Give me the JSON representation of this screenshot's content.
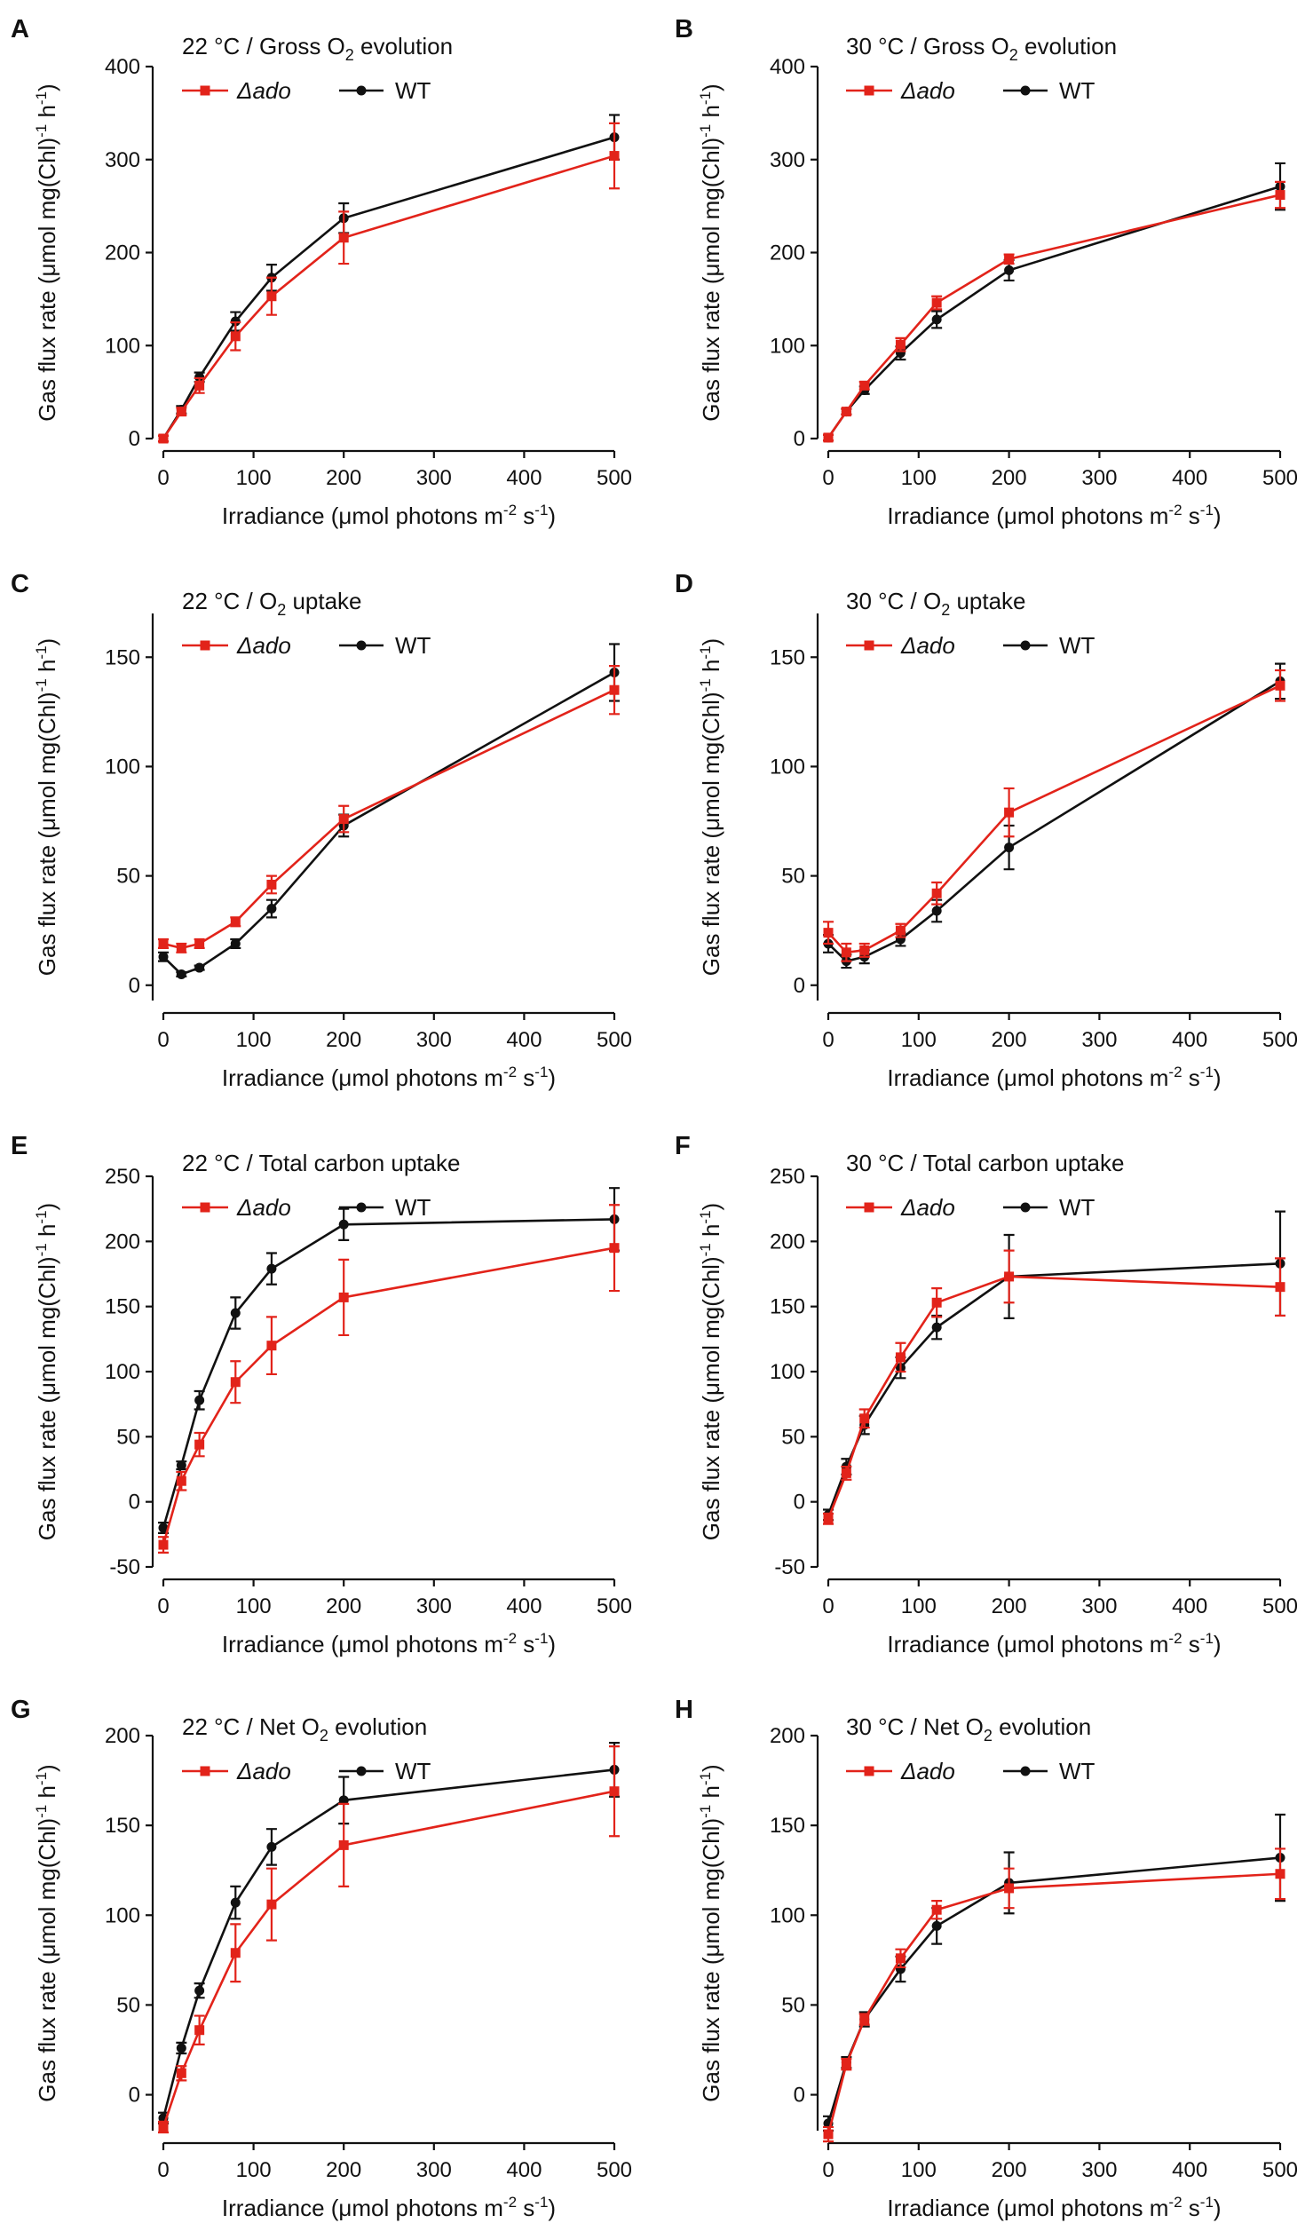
{
  "colors": {
    "ado": "#e2231a",
    "wt": "#111111"
  },
  "chart_data": [
    {
      "panel": "A",
      "type": "line",
      "title": "22 °C / Gross O2 evolution",
      "title_parts": [
        "22 °C / Gross O",
        "2",
        " evolution"
      ],
      "xlabel": "Irradiance (μmol photons m-2 s-1)",
      "xlabel_parts": [
        "Irradiance (μmol photons m",
        "-2",
        " s",
        "-1",
        ")"
      ],
      "ylabel": "Gas flux rate (μmol mg(Chl)-1 h-1)",
      "ylabel_parts": [
        "Gas flux rate (μmol mg(Chl)",
        "-1",
        " h",
        "-1",
        ")"
      ],
      "xlim": [
        0,
        500
      ],
      "ylim": [
        0,
        400
      ],
      "x_ticks": [
        0,
        100,
        200,
        300,
        400,
        500
      ],
      "y_ticks": [
        0,
        100,
        200,
        300,
        400
      ],
      "x": [
        0,
        20,
        40,
        80,
        120,
        200,
        500
      ],
      "series": [
        {
          "name": "Δado",
          "color": "#e2231a",
          "marker": "square",
          "values": [
            0,
            29,
            57,
            110,
            153,
            216,
            304
          ],
          "errors": [
            3,
            4,
            8,
            15,
            20,
            28,
            35
          ]
        },
        {
          "name": "WT",
          "color": "#111111",
          "marker": "circle",
          "values": [
            0,
            31,
            66,
            126,
            173,
            237,
            324
          ],
          "errors": [
            3,
            4,
            5,
            10,
            14,
            16,
            24
          ]
        }
      ]
    },
    {
      "panel": "B",
      "type": "line",
      "title": "30 °C / Gross O2 evolution",
      "title_parts": [
        "30 °C / Gross O",
        "2",
        " evolution"
      ],
      "xlabel": "Irradiance (μmol photons m-2 s-1)",
      "xlabel_parts": [
        "Irradiance (μmol photons m",
        "-2",
        " s",
        "-1",
        ")"
      ],
      "ylabel": "Gas flux rate (μmol mg(Chl)-1 h-1)",
      "ylabel_parts": [
        "Gas flux rate (μmol mg(Chl)",
        "-1",
        " h",
        "-1",
        ")"
      ],
      "xlim": [
        0,
        500
      ],
      "ylim": [
        0,
        400
      ],
      "x_ticks": [
        0,
        100,
        200,
        300,
        400,
        500
      ],
      "y_ticks": [
        0,
        100,
        200,
        300,
        400
      ],
      "x": [
        0,
        20,
        40,
        80,
        120,
        200,
        500
      ],
      "series": [
        {
          "name": "Δado",
          "color": "#e2231a",
          "marker": "square",
          "values": [
            1,
            29,
            57,
            101,
            146,
            193,
            262
          ],
          "errors": [
            3,
            3,
            4,
            7,
            7,
            5,
            14
          ]
        },
        {
          "name": "WT",
          "color": "#111111",
          "marker": "circle",
          "values": [
            1,
            29,
            52,
            92,
            128,
            181,
            271
          ],
          "errors": [
            3,
            3,
            4,
            7,
            9,
            11,
            25
          ]
        }
      ]
    },
    {
      "panel": "C",
      "type": "line",
      "title": "22 °C / O2 uptake",
      "title_parts": [
        "22 °C / O",
        "2",
        " uptake"
      ],
      "xlabel": "Irradiance (μmol photons m-2 s-1)",
      "xlabel_parts": [
        "Irradiance (μmol photons m",
        "-2",
        " s",
        "-1",
        ")"
      ],
      "ylabel": "Gas flux rate (μmol mg(Chl)-1 h-1)",
      "ylabel_parts": [
        "Gas flux rate (μmol mg(Chl)",
        "-1",
        " h",
        "-1",
        ")"
      ],
      "xlim": [
        0,
        500
      ],
      "ylim": [
        -7,
        170
      ],
      "x_ticks": [
        0,
        100,
        200,
        300,
        400,
        500
      ],
      "y_ticks": [
        0,
        50,
        100,
        150
      ],
      "x": [
        0,
        20,
        40,
        80,
        120,
        200,
        500
      ],
      "series": [
        {
          "name": "Δado",
          "color": "#e2231a",
          "marker": "square",
          "values": [
            19,
            17,
            19,
            29,
            46,
            76,
            135
          ],
          "errors": [
            2,
            2,
            2,
            2,
            4,
            6,
            11
          ]
        },
        {
          "name": "WT",
          "color": "#111111",
          "marker": "circle",
          "values": [
            13,
            5,
            8,
            19,
            35,
            73,
            143
          ],
          "errors": [
            2,
            1,
            1,
            2,
            4,
            5,
            13
          ]
        }
      ]
    },
    {
      "panel": "D",
      "type": "line",
      "title": "30 °C / O2 uptake",
      "title_parts": [
        "30 °C / O",
        "2",
        " uptake"
      ],
      "xlabel": "Irradiance (μmol photons m-2 s-1)",
      "xlabel_parts": [
        "Irradiance (μmol photons m",
        "-2",
        " s",
        "-1",
        ")"
      ],
      "ylabel": "Gas flux rate (μmol mg(Chl)-1 h-1)",
      "ylabel_parts": [
        "Gas flux rate (μmol mg(Chl)",
        "-1",
        " h",
        "-1",
        ")"
      ],
      "xlim": [
        0,
        500
      ],
      "ylim": [
        -7,
        170
      ],
      "x_ticks": [
        0,
        100,
        200,
        300,
        400,
        500
      ],
      "y_ticks": [
        0,
        50,
        100,
        150
      ],
      "x": [
        0,
        20,
        40,
        80,
        120,
        200,
        500
      ],
      "series": [
        {
          "name": "Δado",
          "color": "#e2231a",
          "marker": "square",
          "values": [
            24,
            15,
            16,
            25,
            42,
            79,
            137
          ],
          "errors": [
            5,
            4,
            3,
            3,
            5,
            11,
            7
          ]
        },
        {
          "name": "WT",
          "color": "#111111",
          "marker": "circle",
          "values": [
            19,
            11,
            13,
            21,
            34,
            63,
            139
          ],
          "errors": [
            4,
            3,
            3,
            3,
            5,
            10,
            8
          ]
        }
      ]
    },
    {
      "panel": "E",
      "type": "line",
      "title": "22 °C / Total carbon uptake",
      "title_parts": [
        "22 °C / Total carbon uptake"
      ],
      "xlabel": "Irradiance (μmol photons m-2 s-1)",
      "xlabel_parts": [
        "Irradiance (μmol photons m",
        "-2",
        " s",
        "-1",
        ")"
      ],
      "ylabel": "Gas flux rate (μmol mg(Chl)-1 h-1)",
      "ylabel_parts": [
        "Gas flux rate (μmol mg(Chl)",
        "-1",
        " h",
        "-1",
        ")"
      ],
      "xlim": [
        0,
        500
      ],
      "ylim": [
        -50,
        250
      ],
      "x_ticks": [
        0,
        100,
        200,
        300,
        400,
        500
      ],
      "y_ticks": [
        -50,
        0,
        50,
        100,
        150,
        200,
        250
      ],
      "x": [
        0,
        20,
        40,
        80,
        120,
        200,
        500
      ],
      "series": [
        {
          "name": "Δado",
          "color": "#e2231a",
          "marker": "square",
          "values": [
            -33,
            16,
            44,
            92,
            120,
            157,
            195
          ],
          "errors": [
            6,
            7,
            9,
            16,
            22,
            29,
            33
          ]
        },
        {
          "name": "WT",
          "color": "#111111",
          "marker": "circle",
          "values": [
            -20,
            28,
            78,
            145,
            179,
            213,
            217
          ],
          "errors": [
            4,
            3,
            7,
            12,
            12,
            12,
            24
          ]
        }
      ]
    },
    {
      "panel": "F",
      "type": "line",
      "title": "30 °C / Total carbon uptake",
      "title_parts": [
        "30 °C / Total carbon uptake"
      ],
      "xlabel": "Irradiance (μmol photons m-2 s-1)",
      "xlabel_parts": [
        "Irradiance (μmol photons m",
        "-2",
        " s",
        "-1",
        ")"
      ],
      "ylabel": "Gas flux rate (μmol mg(Chl)-1 h-1)",
      "ylabel_parts": [
        "Gas flux rate (μmol mg(Chl)",
        "-1",
        " h",
        "-1",
        ")"
      ],
      "xlim": [
        0,
        500
      ],
      "ylim": [
        -50,
        250
      ],
      "x_ticks": [
        0,
        100,
        200,
        300,
        400,
        500
      ],
      "y_ticks": [
        -50,
        0,
        50,
        100,
        150,
        200,
        250
      ],
      "x": [
        0,
        20,
        40,
        80,
        120,
        200,
        500
      ],
      "series": [
        {
          "name": "Δado",
          "color": "#e2231a",
          "marker": "square",
          "values": [
            -13,
            22,
            64,
            111,
            153,
            173,
            165
          ],
          "errors": [
            4,
            5,
            7,
            11,
            11,
            20,
            22
          ]
        },
        {
          "name": "WT",
          "color": "#111111",
          "marker": "circle",
          "values": [
            -10,
            27,
            59,
            103,
            134,
            173,
            183
          ],
          "errors": [
            4,
            6,
            7,
            8,
            9,
            32,
            40
          ]
        }
      ]
    },
    {
      "panel": "G",
      "type": "line",
      "title": "22 °C / Net O2 evolution",
      "title_parts": [
        "22 °C / Net O",
        "2",
        " evolution"
      ],
      "xlabel": "Irradiance (μmol photons m-2 s-1)",
      "xlabel_parts": [
        "Irradiance (μmol photons m",
        "-2",
        " s",
        "-1",
        ")"
      ],
      "ylabel": "Gas flux rate (μmol mg(Chl)-1 h-1)",
      "ylabel_parts": [
        "Gas flux rate (μmol mg(Chl)",
        "-1",
        " h",
        "-1",
        ")"
      ],
      "xlim": [
        0,
        500
      ],
      "ylim": [
        -20,
        200
      ],
      "x_ticks": [
        0,
        100,
        200,
        300,
        400,
        500
      ],
      "y_ticks": [
        0,
        50,
        100,
        150,
        200
      ],
      "x": [
        0,
        20,
        40,
        80,
        120,
        200,
        500
      ],
      "series": [
        {
          "name": "Δado",
          "color": "#e2231a",
          "marker": "square",
          "values": [
            -18,
            12,
            36,
            79,
            106,
            139,
            169
          ],
          "errors": [
            3,
            4,
            8,
            16,
            20,
            23,
            25
          ]
        },
        {
          "name": "WT",
          "color": "#111111",
          "marker": "circle",
          "values": [
            -13,
            26,
            58,
            107,
            138,
            164,
            181
          ],
          "errors": [
            3,
            3,
            4,
            9,
            10,
            13,
            15
          ]
        }
      ]
    },
    {
      "panel": "H",
      "type": "line",
      "title": "30 °C / Net O2 evolution",
      "title_parts": [
        "30 °C / Net O",
        "2",
        " evolution"
      ],
      "xlabel": "Irradiance (μmol photons m-2 s-1)",
      "xlabel_parts": [
        "Irradiance (μmol photons m",
        "-2",
        " s",
        "-1",
        ")"
      ],
      "ylabel": "Gas flux rate (μmol mg(Chl)-1 h-1)",
      "ylabel_parts": [
        "Gas flux rate (μmol mg(Chl)",
        "-1",
        " h",
        "-1",
        ")"
      ],
      "xlim": [
        0,
        500
      ],
      "ylim": [
        -20,
        200
      ],
      "x_ticks": [
        0,
        100,
        200,
        300,
        400,
        500
      ],
      "y_ticks": [
        0,
        50,
        100,
        150,
        200
      ],
      "x": [
        0,
        20,
        40,
        80,
        120,
        200,
        500
      ],
      "series": [
        {
          "name": "Δado",
          "color": "#e2231a",
          "marker": "square",
          "values": [
            -22,
            17,
            42,
            76,
            103,
            115,
            123
          ],
          "errors": [
            4,
            3,
            3,
            5,
            5,
            11,
            14
          ]
        },
        {
          "name": "WT",
          "color": "#111111",
          "marker": "circle",
          "values": [
            -16,
            18,
            42,
            70,
            94,
            118,
            132
          ],
          "errors": [
            4,
            3,
            4,
            7,
            10,
            17,
            24
          ]
        }
      ]
    }
  ]
}
